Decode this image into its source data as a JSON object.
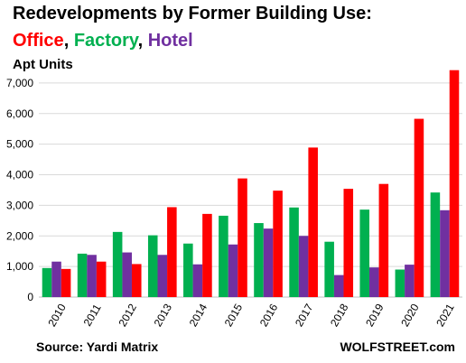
{
  "title": "Redevelopments by Former Building Use:",
  "subtitle": {
    "parts": [
      {
        "text": "Office",
        "color": "#ff0000"
      },
      {
        "text": ", ",
        "color": "#000000"
      },
      {
        "text": "Factory",
        "color": "#00b050"
      },
      {
        "text": ", ",
        "color": "#000000"
      },
      {
        "text": "Hotel",
        "color": "#7030a0"
      }
    ]
  },
  "source": "Source: Yardi Matrix",
  "brand": "WOLFSTREET.com",
  "chart_data": {
    "type": "bar",
    "title": "Redevelopments by Former Building Use:",
    "ylabel": "Apt Units",
    "xlabel": "",
    "ylim": [
      0,
      7500
    ],
    "yticks": [
      0,
      1000,
      2000,
      3000,
      4000,
      5000,
      6000,
      7000
    ],
    "ytick_labels": [
      "0",
      "1,000",
      "2,000",
      "3,000",
      "4,000",
      "5,000",
      "6,000",
      "7,000"
    ],
    "grid": true,
    "legend": "in subtitle",
    "categories": [
      "2010",
      "2011",
      "2012",
      "2013",
      "2014",
      "2015",
      "2016",
      "2017",
      "2018",
      "2019",
      "2020",
      "2021"
    ],
    "series": [
      {
        "name": "Factory",
        "color": "#00b050",
        "values": [
          950,
          1420,
          2130,
          2020,
          1750,
          2660,
          2420,
          2930,
          1810,
          2860,
          900,
          3420
        ]
      },
      {
        "name": "Hotel",
        "color": "#7030a0",
        "values": [
          1160,
          1380,
          1460,
          1380,
          1070,
          1720,
          2240,
          2000,
          720,
          970,
          1060,
          2840
        ]
      },
      {
        "name": "Office",
        "color": "#ff0000",
        "values": [
          920,
          1160,
          1080,
          2940,
          2720,
          3880,
          3480,
          4890,
          3540,
          3700,
          5830,
          7420
        ]
      }
    ]
  }
}
